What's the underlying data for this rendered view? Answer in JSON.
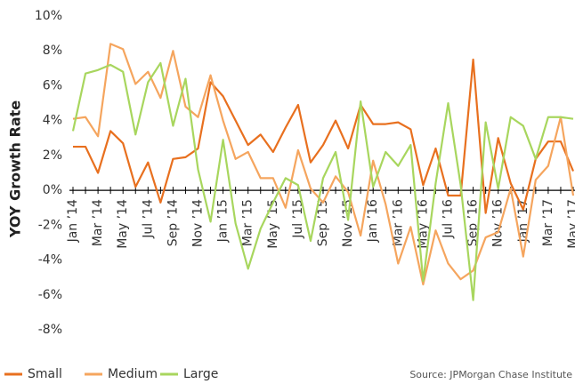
{
  "chart_data": {
    "type": "line",
    "y_label": "YOY Growth Rate",
    "source": "Source:  JPMorgan Chase Institute",
    "categories": [
      "Jan ’14",
      null,
      "Mar ’14",
      null,
      "May ’14",
      null,
      "Jul ’14",
      null,
      "Sep ’14",
      null,
      "Nov ’14",
      null,
      "Jan ’15",
      null,
      "Mar ’15",
      null,
      "May ’15",
      null,
      "Jul ’15",
      null,
      "Sep ’15",
      null,
      "Nov ’15",
      null,
      "Jan ’16",
      null,
      "Mar ’16",
      null,
      "May ’16",
      null,
      "Jul ’16",
      null,
      "Sep ’16",
      null,
      "Nov ’16",
      null,
      "Jan ’17",
      null,
      "Mar ’17",
      null,
      "May ’17"
    ],
    "series": [
      {
        "name": "Small",
        "color": "#e8701f",
        "values": [
          2.5,
          2.5,
          1.0,
          3.4,
          2.7,
          0.2,
          1.6,
          -0.7,
          1.8,
          1.9,
          2.4,
          6.2,
          5.4,
          4.0,
          2.6,
          3.2,
          2.2,
          3.6,
          4.9,
          1.6,
          2.6,
          4.0,
          2.4,
          4.9,
          3.8,
          3.8,
          3.9,
          3.5,
          0.3,
          2.4,
          -0.3,
          -0.3,
          7.5,
          -1.3,
          3.0,
          0.4,
          -1.1,
          1.8,
          2.8,
          2.8,
          1.1
        ]
      },
      {
        "name": "Medium",
        "color": "#f5a55e",
        "values": [
          4.1,
          4.2,
          3.1,
          8.4,
          8.1,
          6.1,
          6.8,
          5.3,
          8.0,
          4.8,
          4.2,
          6.6,
          4.0,
          1.8,
          2.2,
          0.7,
          0.7,
          -1.0,
          2.3,
          0.1,
          -0.7,
          0.8,
          -0.1,
          -2.6,
          1.7,
          -0.8,
          -4.2,
          -2.1,
          -5.4,
          -2.3,
          -4.2,
          -5.1,
          -4.6,
          -2.7,
          -2.4,
          0.1,
          -3.8,
          0.6,
          1.4,
          4.2,
          -0.3
        ]
      },
      {
        "name": "Large",
        "color": "#a8d65e",
        "values": [
          3.4,
          6.7,
          6.9,
          7.2,
          6.8,
          3.2,
          6.2,
          7.3,
          3.7,
          6.4,
          1.2,
          -1.8,
          2.9,
          -1.9,
          -4.5,
          -2.2,
          -0.7,
          0.7,
          0.3,
          -2.9,
          0.7,
          2.2,
          -1.7,
          5.1,
          0.2,
          2.2,
          1.4,
          2.6,
          -5.2,
          0.4,
          5.0,
          0.3,
          -6.3,
          3.9,
          0.1,
          4.2,
          3.7,
          1.8,
          4.2,
          4.2,
          4.1
        ]
      }
    ],
    "ylim": [
      -8,
      10
    ],
    "yticks": [
      {
        "value": -8,
        "label": "-8%"
      },
      {
        "value": -6,
        "label": "-6%"
      },
      {
        "value": -4,
        "label": "-4%"
      },
      {
        "value": -2,
        "label": "-2%"
      },
      {
        "value": 0,
        "label": "0%"
      },
      {
        "value": 2,
        "label": "2%"
      },
      {
        "value": 4,
        "label": "4%"
      },
      {
        "value": 6,
        "label": "6%"
      },
      {
        "value": 8,
        "label": "8%"
      },
      {
        "value": 10,
        "label": "10%"
      }
    ],
    "grid": false,
    "legend": "bottom"
  }
}
